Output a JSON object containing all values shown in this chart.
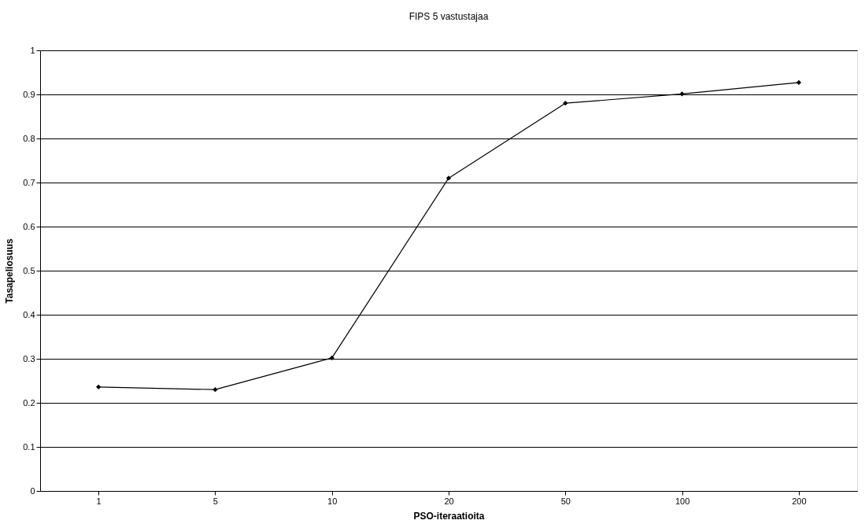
{
  "chart_data": {
    "type": "line",
    "title": "FIPS 5 vastustajaa",
    "xlabel": "PSO-iteraatioita",
    "ylabel": "Tasapeliosuus",
    "categories": [
      "1",
      "5",
      "10",
      "20",
      "50",
      "100",
      "200"
    ],
    "series": [
      {
        "color": "#000000",
        "values": [
          0.236,
          0.23,
          0.302,
          0.71,
          0.88,
          0.901,
          0.927
        ]
      }
    ],
    "ylim": [
      0,
      1
    ],
    "yticks": [
      0,
      0.1,
      0.2,
      0.3,
      0.4,
      0.5,
      0.6,
      0.7,
      0.8,
      0.9,
      1
    ],
    "grid": "y",
    "marker": "diamond",
    "line_style": "solid"
  }
}
